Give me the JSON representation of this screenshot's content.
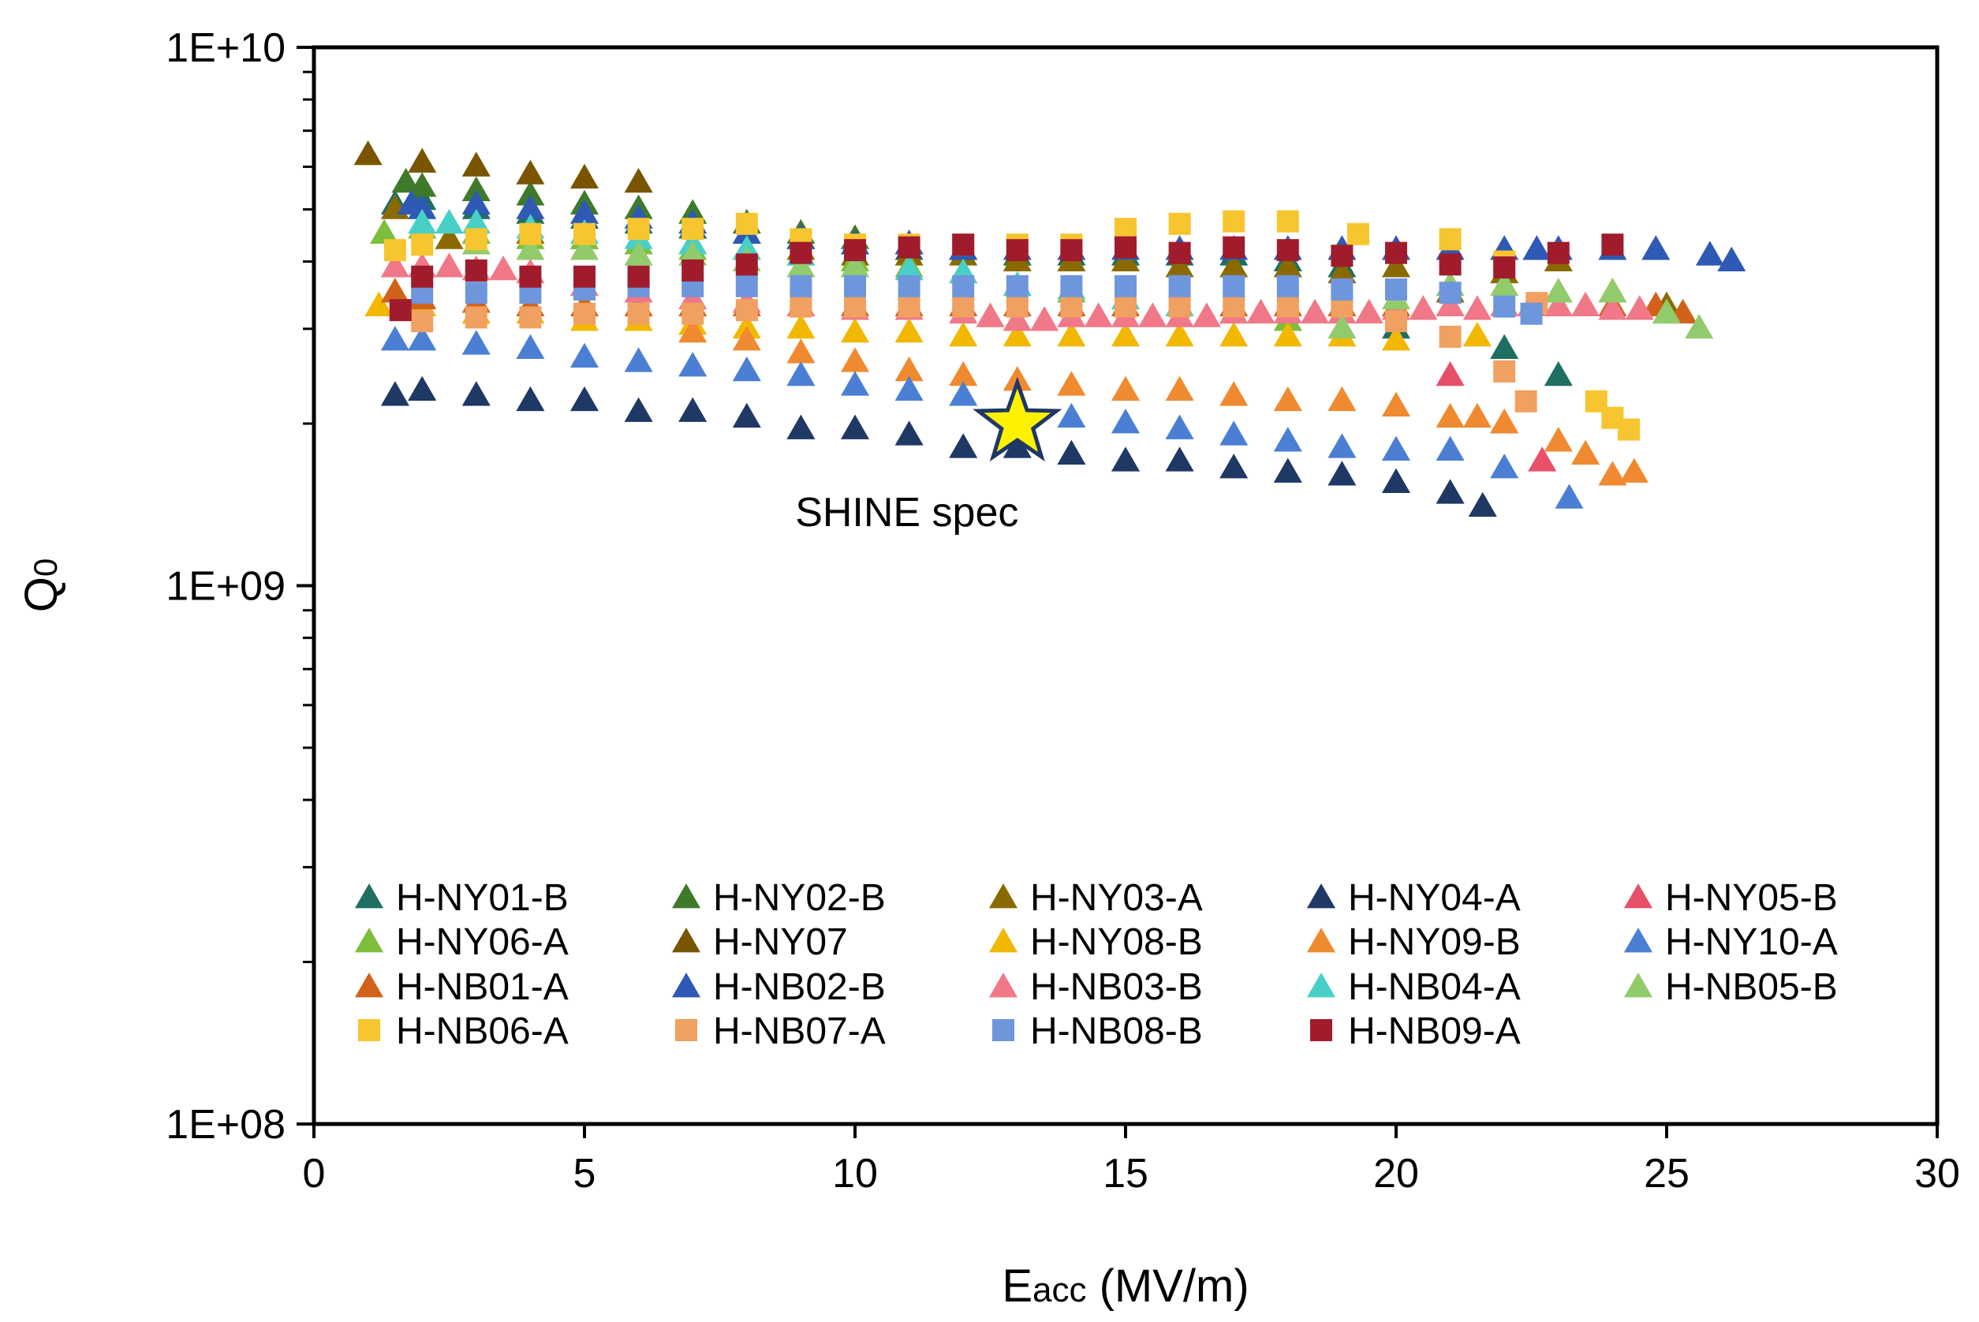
{
  "chart_data": {
    "type": "scatter",
    "title": "",
    "xlabel_main": "E",
    "xlabel_sub": "acc",
    "xlabel_rest": " (MV/m)",
    "ylabel_main": "Q",
    "ylabel_sub": "0",
    "xlim": [
      0,
      30
    ],
    "ylim": [
      100000000,
      10000000000
    ],
    "yscale": "log",
    "x_ticks": [
      "0",
      "5",
      "10",
      "15",
      "20",
      "25",
      "30"
    ],
    "y_ticks": [
      "1E+08",
      "1E+09",
      "1E+10"
    ],
    "legend_position": "bottom-inside",
    "annotation": {
      "text": "SHINE spec",
      "x": 13,
      "y": 2000000000,
      "marker": "star",
      "color": "#FFF200"
    },
    "series": [
      {
        "name": "H-NY01-B",
        "marker": "triangle",
        "color": "#1F6F63",
        "x": [
          1.5,
          2,
          3,
          4,
          5,
          6,
          7,
          8,
          9,
          10,
          11,
          12,
          13,
          14,
          15,
          16,
          17,
          18,
          19,
          20,
          21,
          22,
          23
        ],
        "y": [
          5100000000.0,
          5200000000.0,
          5000000000.0,
          4900000000.0,
          4800000000.0,
          4700000000.0,
          4600000000.0,
          4500000000.0,
          4400000000.0,
          4300000000.0,
          4200000000.0,
          4200000000.0,
          4100000000.0,
          4100000000.0,
          4100000000.0,
          4100000000.0,
          4100000000.0,
          4000000000.0,
          3900000000.0,
          3000000000.0,
          3500000000.0,
          2750000000.0,
          2450000000.0
        ]
      },
      {
        "name": "H-NY02-B",
        "marker": "triangle",
        "color": "#3F7A2B",
        "x": [
          1.7,
          2,
          3,
          4,
          5,
          6,
          7,
          8,
          9,
          10,
          11,
          12,
          13
        ],
        "y": [
          5600000000.0,
          5500000000.0,
          5400000000.0,
          5300000000.0,
          5100000000.0,
          5000000000.0,
          4900000000.0,
          4700000000.0,
          4500000000.0,
          4400000000.0,
          4300000000.0,
          4200000000.0,
          4100000000.0
        ]
      },
      {
        "name": "H-NY03-A",
        "marker": "triangle",
        "color": "#8A6A00",
        "x": [
          1.5,
          2.5,
          3,
          4,
          5,
          6,
          7,
          8,
          9,
          10,
          11,
          12,
          13,
          14,
          15,
          16,
          17,
          18,
          19,
          20,
          21,
          22,
          23,
          24,
          25
        ],
        "y": [
          5000000000.0,
          4400000000.0,
          4500000000.0,
          4500000000.0,
          4400000000.0,
          4300000000.0,
          4300000000.0,
          4200000000.0,
          4200000000.0,
          4100000000.0,
          4100000000.0,
          4100000000.0,
          4000000000.0,
          4000000000.0,
          4000000000.0,
          3900000000.0,
          3900000000.0,
          3900000000.0,
          3800000000.0,
          3900000000.0,
          3500000000.0,
          3800000000.0,
          4000000000.0,
          3500000000.0,
          3300000000.0
        ]
      },
      {
        "name": "H-NY04-A",
        "marker": "triangle",
        "color": "#1F3864",
        "x": [
          1.5,
          2,
          3,
          4,
          5,
          6,
          7,
          8,
          9,
          10,
          11,
          12,
          13,
          14,
          15,
          16,
          17,
          18,
          19,
          20,
          21,
          21.6
        ],
        "y": [
          2250000000.0,
          2300000000.0,
          2250000000.0,
          2200000000.0,
          2200000000.0,
          2100000000.0,
          2100000000.0,
          2050000000.0,
          1950000000.0,
          1950000000.0,
          1900000000.0,
          1800000000.0,
          1800000000.0,
          1750000000.0,
          1700000000.0,
          1700000000.0,
          1650000000.0,
          1620000000.0,
          1600000000.0,
          1550000000.0,
          1480000000.0,
          1400000000.0
        ]
      },
      {
        "name": "H-NY05-B",
        "marker": "triangle",
        "color": "#E8506A",
        "x": [
          21,
          22,
          22.7
        ],
        "y": [
          2450000000.0,
          2000000000.0,
          1700000000.0
        ]
      },
      {
        "name": "H-NY06-A",
        "marker": "triangle",
        "color": "#7DBE3A",
        "x": [
          1.3,
          2,
          3,
          4,
          5,
          6,
          7,
          8,
          9,
          10,
          11,
          12,
          13,
          14,
          15,
          16,
          17,
          18
        ],
        "y": [
          4500000000.0,
          4600000000.0,
          4500000000.0,
          4400000000.0,
          4400000000.0,
          4300000000.0,
          4200000000.0,
          4200000000.0,
          4100000000.0,
          4000000000.0,
          3900000000.0,
          3800000000.0,
          3600000000.0,
          3500000000.0,
          3400000000.0,
          3300000000.0,
          3200000000.0,
          3100000000.0
        ]
      },
      {
        "name": "H-NY07",
        "marker": "triangle",
        "color": "#7A5500",
        "x": [
          1,
          2,
          3,
          4,
          5,
          6
        ],
        "y": [
          6300000000.0,
          6100000000.0,
          6000000000.0,
          5800000000.0,
          5700000000.0,
          5600000000.0
        ]
      },
      {
        "name": "H-NY08-B",
        "marker": "triangle",
        "color": "#F2B800",
        "x": [
          1.2,
          2,
          3,
          4,
          5,
          6,
          7,
          8,
          9,
          10,
          11,
          12,
          13,
          14,
          15,
          16,
          17,
          18,
          19,
          20,
          21.5
        ],
        "y": [
          3300000000.0,
          3300000000.0,
          3200000000.0,
          3200000000.0,
          3100000000.0,
          3100000000.0,
          3050000000.0,
          3000000000.0,
          3000000000.0,
          2950000000.0,
          2950000000.0,
          2900000000.0,
          2900000000.0,
          2900000000.0,
          2900000000.0,
          2900000000.0,
          2900000000.0,
          2900000000.0,
          2900000000.0,
          2850000000.0,
          2900000000.0
        ]
      },
      {
        "name": "H-NY09-B",
        "marker": "triangle",
        "color": "#F08A30",
        "x": [
          7,
          8,
          9,
          10,
          11,
          12,
          13,
          14,
          15,
          16,
          17,
          18,
          19,
          20,
          21,
          21.5,
          22,
          23,
          23.5,
          24,
          24.4
        ],
        "y": [
          2950000000.0,
          2850000000.0,
          2700000000.0,
          2600000000.0,
          2500000000.0,
          2450000000.0,
          2400000000.0,
          2350000000.0,
          2300000000.0,
          2300000000.0,
          2250000000.0,
          2200000000.0,
          2200000000.0,
          2150000000.0,
          2050000000.0,
          2050000000.0,
          2000000000.0,
          1850000000.0,
          1750000000.0,
          1600000000.0,
          1620000000.0
        ]
      },
      {
        "name": "H-NY10-A",
        "marker": "triangle",
        "color": "#4A7FD4",
        "x": [
          1.5,
          2,
          3,
          4,
          5,
          6,
          7,
          8,
          9,
          10,
          11,
          12,
          13,
          14,
          15,
          16,
          17,
          18,
          19,
          20,
          21,
          22,
          23.2
        ],
        "y": [
          2850000000.0,
          2850000000.0,
          2800000000.0,
          2750000000.0,
          2650000000.0,
          2600000000.0,
          2550000000.0,
          2500000000.0,
          2450000000.0,
          2350000000.0,
          2300000000.0,
          2250000000.0,
          2150000000.0,
          2050000000.0,
          2000000000.0,
          1950000000.0,
          1900000000.0,
          1850000000.0,
          1800000000.0,
          1780000000.0,
          1780000000.0,
          1650000000.0,
          1450000000.0
        ]
      },
      {
        "name": "H-NB01-A",
        "marker": "triangle",
        "color": "#D2621A",
        "x": [
          1.5,
          2,
          3,
          4,
          5,
          6,
          7,
          8,
          9,
          10,
          11,
          12,
          13,
          14,
          15,
          16,
          17,
          18,
          19,
          20,
          21,
          22,
          23,
          24,
          24.8,
          25.3
        ],
        "y": [
          3500000000.0,
          3400000000.0,
          3350000000.0,
          3300000000.0,
          3300000000.0,
          3300000000.0,
          3300000000.0,
          3300000000.0,
          3300000000.0,
          3300000000.0,
          3300000000.0,
          3300000000.0,
          3300000000.0,
          3300000000.0,
          3300000000.0,
          3300000000.0,
          3300000000.0,
          3300000000.0,
          3300000000.0,
          3300000000.0,
          3300000000.0,
          3300000000.0,
          3300000000.0,
          3300000000.0,
          3300000000.0,
          3200000000.0
        ]
      },
      {
        "name": "H-NB02-B",
        "marker": "triangle",
        "color": "#2E59B5",
        "x": [
          1.8,
          2,
          3,
          4,
          5,
          6,
          7,
          8,
          9,
          10,
          11,
          12,
          13,
          14,
          15,
          16,
          17,
          18,
          19,
          20,
          21,
          22,
          22.6,
          23,
          24,
          24.8,
          25.8,
          26.2
        ],
        "y": [
          5100000000.0,
          5000000000.0,
          5100000000.0,
          5000000000.0,
          4900000000.0,
          4800000000.0,
          4700000000.0,
          4500000000.0,
          4400000000.0,
          4300000000.0,
          4300000000.0,
          4200000000.0,
          4200000000.0,
          4200000000.0,
          4200000000.0,
          4200000000.0,
          4200000000.0,
          4200000000.0,
          4200000000.0,
          4200000000.0,
          4200000000.0,
          4200000000.0,
          4200000000.0,
          4200000000.0,
          4200000000.0,
          4200000000.0,
          4100000000.0,
          4000000000.0
        ]
      },
      {
        "name": "H-NB03-B",
        "marker": "triangle",
        "color": "#F07888",
        "x": [
          1.5,
          2,
          2.5,
          3,
          3.5,
          4,
          5,
          6,
          7,
          8,
          9,
          10,
          11,
          12,
          12.5,
          13,
          13.5,
          14,
          14.5,
          15,
          15.5,
          16,
          16.5,
          17,
          17.5,
          18,
          18.5,
          19,
          19.5,
          20,
          20.5,
          21,
          21.5,
          22,
          22.5,
          23,
          23.5,
          24,
          24.5,
          25
        ],
        "y": [
          3900000000.0,
          3900000000.0,
          3900000000.0,
          3850000000.0,
          3850000000.0,
          3800000000.0,
          3600000000.0,
          3500000000.0,
          3400000000.0,
          3350000000.0,
          3300000000.0,
          3250000000.0,
          3250000000.0,
          3200000000.0,
          3150000000.0,
          3100000000.0,
          3100000000.0,
          3150000000.0,
          3150000000.0,
          3150000000.0,
          3150000000.0,
          3150000000.0,
          3150000000.0,
          3200000000.0,
          3200000000.0,
          3200000000.0,
          3200000000.0,
          3200000000.0,
          3200000000.0,
          3250000000.0,
          3250000000.0,
          3300000000.0,
          3250000000.0,
          3300000000.0,
          3300000000.0,
          3300000000.0,
          3300000000.0,
          3250000000.0,
          3250000000.0,
          3200000000.0
        ]
      },
      {
        "name": "H-NB04-A",
        "marker": "triangle",
        "color": "#48D0C8",
        "x": [
          2,
          2.5,
          3,
          4,
          5,
          6,
          7,
          8,
          9,
          10,
          11,
          12,
          13,
          14,
          15,
          16
        ],
        "y": [
          4700000000.0,
          4700000000.0,
          4700000000.0,
          4600000000.0,
          4500000000.0,
          4400000000.0,
          4300000000.0,
          4200000000.0,
          4100000000.0,
          3900000000.0,
          3850000000.0,
          3800000000.0,
          3600000000.0,
          3550000000.0,
          3400000000.0,
          3300000000.0
        ]
      },
      {
        "name": "H-NB05-B",
        "marker": "triangle",
        "color": "#92CB6B",
        "x": [
          3,
          4,
          5,
          6,
          7,
          8,
          9,
          10,
          19,
          20,
          21,
          22,
          23,
          24,
          25,
          25.6
        ],
        "y": [
          4300000000.0,
          4200000000.0,
          4200000000.0,
          4100000000.0,
          4100000000.0,
          4000000000.0,
          3900000000.0,
          3900000000.0,
          3000000000.0,
          3400000000.0,
          3600000000.0,
          3600000000.0,
          3500000000.0,
          3500000000.0,
          3200000000.0,
          3000000000.0
        ]
      },
      {
        "name": "H-NB06-A",
        "marker": "square",
        "color": "#F7C52F",
        "x": [
          1.5,
          2,
          3,
          4,
          5,
          6,
          7,
          8,
          9,
          10,
          11,
          12,
          13,
          14,
          15,
          16,
          17,
          18,
          19.3,
          21,
          22,
          23.7,
          24,
          24.3
        ],
        "y": [
          4200000000.0,
          4300000000.0,
          4400000000.0,
          4500000000.0,
          4500000000.0,
          4600000000.0,
          4600000000.0,
          4700000000.0,
          4400000000.0,
          4300000000.0,
          4300000000.0,
          4300000000.0,
          4300000000.0,
          4300000000.0,
          4600000000.0,
          4700000000.0,
          4750000000.0,
          4750000000.0,
          4500000000.0,
          4400000000.0,
          4000000000.0,
          2200000000.0,
          2050000000.0,
          1950000000.0
        ]
      },
      {
        "name": "H-NB07-A",
        "marker": "square",
        "color": "#F0A060",
        "x": [
          2,
          3,
          4,
          5,
          6,
          7,
          8,
          9,
          10,
          11,
          12,
          13,
          14,
          15,
          16,
          17,
          18,
          19,
          20,
          21,
          22,
          22.4,
          22.6
        ],
        "y": [
          3100000000.0,
          3150000000.0,
          3150000000.0,
          3200000000.0,
          3200000000.0,
          3200000000.0,
          3250000000.0,
          3300000000.0,
          3300000000.0,
          3300000000.0,
          3300000000.0,
          3300000000.0,
          3300000000.0,
          3300000000.0,
          3300000000.0,
          3300000000.0,
          3300000000.0,
          3300000000.0,
          3100000000.0,
          2900000000.0,
          2500000000.0,
          2200000000.0,
          3350000000.0
        ]
      },
      {
        "name": "H-NB08-B",
        "marker": "square",
        "color": "#6E96DC",
        "x": [
          2,
          3,
          4,
          5,
          6,
          7,
          8,
          9,
          10,
          11,
          12,
          13,
          14,
          15,
          16,
          17,
          18,
          19,
          20,
          21,
          22,
          22.5
        ],
        "y": [
          3500000000.0,
          3500000000.0,
          3500000000.0,
          3550000000.0,
          3600000000.0,
          3600000000.0,
          3600000000.0,
          3600000000.0,
          3600000000.0,
          3600000000.0,
          3600000000.0,
          3600000000.0,
          3600000000.0,
          3600000000.0,
          3600000000.0,
          3600000000.0,
          3600000000.0,
          3550000000.0,
          3550000000.0,
          3500000000.0,
          3300000000.0,
          3200000000.0
        ]
      },
      {
        "name": "H-NB09-A",
        "marker": "square",
        "color": "#A01C2C",
        "x": [
          1.6,
          2,
          3,
          4,
          5,
          6,
          7,
          8,
          9,
          10,
          11,
          12,
          13,
          14,
          15,
          16,
          17,
          18,
          19,
          20,
          21,
          22,
          23,
          24
        ],
        "y": [
          3250000000.0,
          3750000000.0,
          3850000000.0,
          3750000000.0,
          3750000000.0,
          3750000000.0,
          3850000000.0,
          3950000000.0,
          4150000000.0,
          4200000000.0,
          4250000000.0,
          4300000000.0,
          4200000000.0,
          4200000000.0,
          4250000000.0,
          4150000000.0,
          4250000000.0,
          4200000000.0,
          4100000000.0,
          4150000000.0,
          3950000000.0,
          3900000000.0,
          4150000000.0,
          4300000000.0
        ]
      }
    ]
  }
}
